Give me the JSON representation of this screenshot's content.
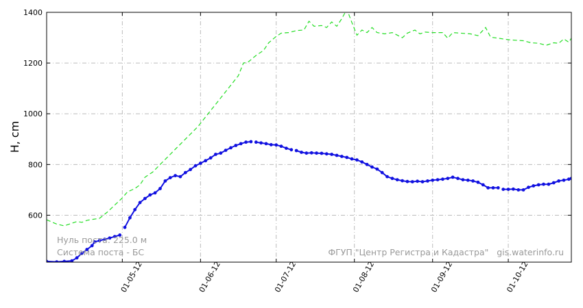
{
  "chart_data": {
    "type": "line",
    "ylabel": "H, cm",
    "ylim": [
      415,
      1400
    ],
    "xlim": [
      "2012-04-01",
      "2012-10-26"
    ],
    "grid": true,
    "x_ticks": [
      {
        "label": "01-05-12",
        "date": "2012-05-01"
      },
      {
        "label": "01-06-12",
        "date": "2012-06-01"
      },
      {
        "label": "01-07-12",
        "date": "2012-07-01"
      },
      {
        "label": "01-08-12",
        "date": "2012-08-01"
      },
      {
        "label": "01-09-12",
        "date": "2012-09-01"
      },
      {
        "label": "01-10-12",
        "date": "2012-10-01"
      }
    ],
    "y_ticks": [
      600,
      800,
      1000,
      1200,
      1400
    ],
    "annotations": {
      "zero_post": "Нуль поста: 225.0 м",
      "system": "Система поста - БС",
      "source": "ФГУП \"Центр Регистра и Кадастра\"   gis.waterinfo.ru"
    },
    "series": [
      {
        "style": "dashed",
        "color": "#22dd22",
        "points": [
          [
            "2012-04-01",
            582
          ],
          [
            "2012-04-05",
            565
          ],
          [
            "2012-04-08",
            558
          ],
          [
            "2012-04-10",
            565
          ],
          [
            "2012-04-13",
            575
          ],
          [
            "2012-04-15",
            572
          ],
          [
            "2012-04-17",
            580
          ],
          [
            "2012-04-22",
            588
          ],
          [
            "2012-04-25",
            612
          ],
          [
            "2012-04-28",
            640
          ],
          [
            "2012-05-01",
            668
          ],
          [
            "2012-05-03",
            692
          ],
          [
            "2012-05-06",
            705
          ],
          [
            "2012-05-08",
            720
          ],
          [
            "2012-05-10",
            750
          ],
          [
            "2012-05-13",
            770
          ],
          [
            "2012-05-16",
            800
          ],
          [
            "2012-05-20",
            840
          ],
          [
            "2012-05-24",
            880
          ],
          [
            "2012-05-27",
            910
          ],
          [
            "2012-05-31",
            950
          ],
          [
            "2012-06-04",
            1000
          ],
          [
            "2012-06-08",
            1050
          ],
          [
            "2012-06-12",
            1100
          ],
          [
            "2012-06-16",
            1150
          ],
          [
            "2012-06-18",
            1200
          ],
          [
            "2012-06-20",
            1205
          ],
          [
            "2012-06-23",
            1230
          ],
          [
            "2012-06-26",
            1250
          ],
          [
            "2012-06-28",
            1280
          ],
          [
            "2012-07-01",
            1305
          ],
          [
            "2012-07-03",
            1318
          ],
          [
            "2012-07-06",
            1320
          ],
          [
            "2012-07-09",
            1328
          ],
          [
            "2012-07-12",
            1330
          ],
          [
            "2012-07-14",
            1365
          ],
          [
            "2012-07-16",
            1345
          ],
          [
            "2012-07-19",
            1348
          ],
          [
            "2012-07-21",
            1340
          ],
          [
            "2012-07-23",
            1362
          ],
          [
            "2012-07-25",
            1345
          ],
          [
            "2012-07-27",
            1375
          ],
          [
            "2012-07-29",
            1412
          ],
          [
            "2012-07-31",
            1360
          ],
          [
            "2012-08-02",
            1310
          ],
          [
            "2012-08-04",
            1330
          ],
          [
            "2012-08-06",
            1320
          ],
          [
            "2012-08-08",
            1340
          ],
          [
            "2012-08-10",
            1320
          ],
          [
            "2012-08-13",
            1315
          ],
          [
            "2012-08-16",
            1320
          ],
          [
            "2012-08-20",
            1300
          ],
          [
            "2012-08-22",
            1318
          ],
          [
            "2012-08-25",
            1330
          ],
          [
            "2012-08-27",
            1315
          ],
          [
            "2012-08-29",
            1322
          ],
          [
            "2012-09-01",
            1320
          ],
          [
            "2012-09-05",
            1320
          ],
          [
            "2012-09-07",
            1298
          ],
          [
            "2012-09-09",
            1320
          ],
          [
            "2012-09-12",
            1318
          ],
          [
            "2012-09-16",
            1315
          ],
          [
            "2012-09-19",
            1308
          ],
          [
            "2012-09-22",
            1340
          ],
          [
            "2012-09-24",
            1302
          ],
          [
            "2012-09-27",
            1298
          ],
          [
            "2012-10-01",
            1292
          ],
          [
            "2012-10-04",
            1290
          ],
          [
            "2012-10-07",
            1288
          ],
          [
            "2012-10-10",
            1280
          ],
          [
            "2012-10-13",
            1278
          ],
          [
            "2012-10-16",
            1270
          ],
          [
            "2012-10-19",
            1280
          ],
          [
            "2012-10-21",
            1278
          ],
          [
            "2012-10-23",
            1295
          ],
          [
            "2012-10-25",
            1282
          ],
          [
            "2012-10-26",
            1298
          ]
        ]
      },
      {
        "style": "solid-markers",
        "color": "#1010e0",
        "points": [
          [
            "2012-04-01",
            418
          ],
          [
            "2012-04-05",
            416
          ],
          [
            "2012-04-08",
            418
          ],
          [
            "2012-04-11",
            420
          ],
          [
            "2012-04-13",
            432
          ],
          [
            "2012-04-15",
            450
          ],
          [
            "2012-04-17",
            465
          ],
          [
            "2012-04-19",
            480
          ],
          [
            "2012-04-20",
            495
          ],
          [
            "2012-04-22",
            500
          ],
          [
            "2012-04-24",
            505
          ],
          [
            "2012-04-26",
            510
          ],
          [
            "2012-04-28",
            516
          ],
          [
            "2012-04-30",
            522
          ],
          [
            "2012-05-02",
            552
          ],
          [
            "2012-05-04",
            590
          ],
          [
            "2012-05-06",
            622
          ],
          [
            "2012-05-08",
            650
          ],
          [
            "2012-05-10",
            666
          ],
          [
            "2012-05-12",
            680
          ],
          [
            "2012-05-14",
            688
          ],
          [
            "2012-05-16",
            705
          ],
          [
            "2012-05-18",
            735
          ],
          [
            "2012-05-20",
            748
          ],
          [
            "2012-05-22",
            756
          ],
          [
            "2012-05-24",
            752
          ],
          [
            "2012-05-26",
            768
          ],
          [
            "2012-05-28",
            780
          ],
          [
            "2012-05-30",
            795
          ],
          [
            "2012-06-01",
            805
          ],
          [
            "2012-06-03",
            815
          ],
          [
            "2012-06-05",
            826
          ],
          [
            "2012-06-07",
            840
          ],
          [
            "2012-06-09",
            845
          ],
          [
            "2012-06-11",
            856
          ],
          [
            "2012-06-13",
            866
          ],
          [
            "2012-06-15",
            875
          ],
          [
            "2012-06-17",
            882
          ],
          [
            "2012-06-19",
            888
          ],
          [
            "2012-06-21",
            890
          ],
          [
            "2012-06-23",
            888
          ],
          [
            "2012-06-25",
            885
          ],
          [
            "2012-06-27",
            882
          ],
          [
            "2012-06-29",
            878
          ],
          [
            "2012-07-01",
            877
          ],
          [
            "2012-07-03",
            872
          ],
          [
            "2012-07-05",
            864
          ],
          [
            "2012-07-07",
            858
          ],
          [
            "2012-07-09",
            855
          ],
          [
            "2012-07-11",
            848
          ],
          [
            "2012-07-13",
            845
          ],
          [
            "2012-07-15",
            846
          ],
          [
            "2012-07-17",
            845
          ],
          [
            "2012-07-19",
            844
          ],
          [
            "2012-07-21",
            842
          ],
          [
            "2012-07-23",
            840
          ],
          [
            "2012-07-25",
            836
          ],
          [
            "2012-07-27",
            832
          ],
          [
            "2012-07-29",
            828
          ],
          [
            "2012-07-31",
            822
          ],
          [
            "2012-08-02",
            818
          ],
          [
            "2012-08-04",
            810
          ],
          [
            "2012-08-06",
            800
          ],
          [
            "2012-08-08",
            790
          ],
          [
            "2012-08-10",
            782
          ],
          [
            "2012-08-12",
            768
          ],
          [
            "2012-08-14",
            752
          ],
          [
            "2012-08-16",
            745
          ],
          [
            "2012-08-18",
            740
          ],
          [
            "2012-08-20",
            736
          ],
          [
            "2012-08-22",
            733
          ],
          [
            "2012-08-24",
            732
          ],
          [
            "2012-08-26",
            734
          ],
          [
            "2012-08-28",
            732
          ],
          [
            "2012-08-30",
            735
          ],
          [
            "2012-09-01",
            738
          ],
          [
            "2012-09-03",
            740
          ],
          [
            "2012-09-05",
            742
          ],
          [
            "2012-09-07",
            745
          ],
          [
            "2012-09-09",
            750
          ],
          [
            "2012-09-11",
            745
          ],
          [
            "2012-09-13",
            740
          ],
          [
            "2012-09-15",
            738
          ],
          [
            "2012-09-17",
            735
          ],
          [
            "2012-09-19",
            730
          ],
          [
            "2012-09-21",
            720
          ],
          [
            "2012-09-23",
            708
          ],
          [
            "2012-09-25",
            708
          ],
          [
            "2012-09-27",
            708
          ],
          [
            "2012-09-29",
            702
          ],
          [
            "2012-10-01",
            702
          ],
          [
            "2012-10-03",
            703
          ],
          [
            "2012-10-05",
            700
          ],
          [
            "2012-10-07",
            700
          ],
          [
            "2012-10-09",
            710
          ],
          [
            "2012-10-11",
            716
          ],
          [
            "2012-10-13",
            720
          ],
          [
            "2012-10-15",
            722
          ],
          [
            "2012-10-17",
            722
          ],
          [
            "2012-10-19",
            728
          ],
          [
            "2012-10-21",
            735
          ],
          [
            "2012-10-23",
            738
          ],
          [
            "2012-10-25",
            742
          ],
          [
            "2012-10-26",
            745
          ]
        ],
        "gaps_after": [
          "2012-04-30",
          "2012-06-21",
          "2012-07-07",
          "2012-09-27"
        ]
      }
    ]
  }
}
